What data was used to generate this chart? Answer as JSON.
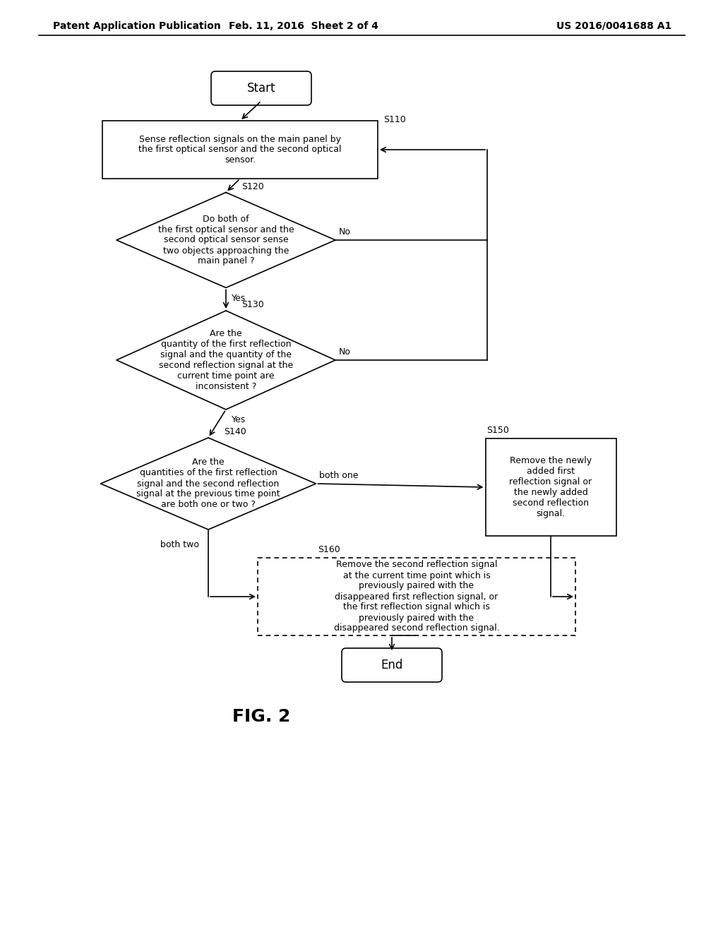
{
  "bg_color": "#ffffff",
  "header_left": "Patent Application Publication",
  "header_mid": "Feb. 11, 2016  Sheet 2 of 4",
  "header_right": "US 2016/0041688 A1",
  "fig_label": "FIG. 2",
  "font_size_node": 9,
  "font_size_header": 10,
  "line_color": "#000000",
  "box_color": "#ffffff",
  "text_color": "#000000",
  "start_text": "Start",
  "end_text": "End",
  "s110_text": "Sense reflection signals on the main panel by\nthe first optical sensor and the second optical\nsensor.",
  "s120_text": "Do both of\nthe first optical sensor and the\nsecond optical sensor sense\ntwo objects approaching the\nmain panel ?",
  "s130_text": "Are the\nquantity of the first reflection\nsignal and the quantity of the\nsecond reflection signal at the\ncurrent time point are\ninconsistent ?",
  "s140_text": "Are the\nquantities of the first reflection\nsignal and the second reflection\nsignal at the previous time point\nare both one or two ?",
  "s150_text": "Remove the newly\nadded first\nreflection signal or\nthe newly added\nsecond reflection\nsignal.",
  "s160_text": "Remove the second reflection signal\nat the current time point which is\npreviously paired with the\ndisappeared first reflection signal, or\nthe first reflection signal which is\npreviously paired with the\ndisappeared second reflection signal."
}
